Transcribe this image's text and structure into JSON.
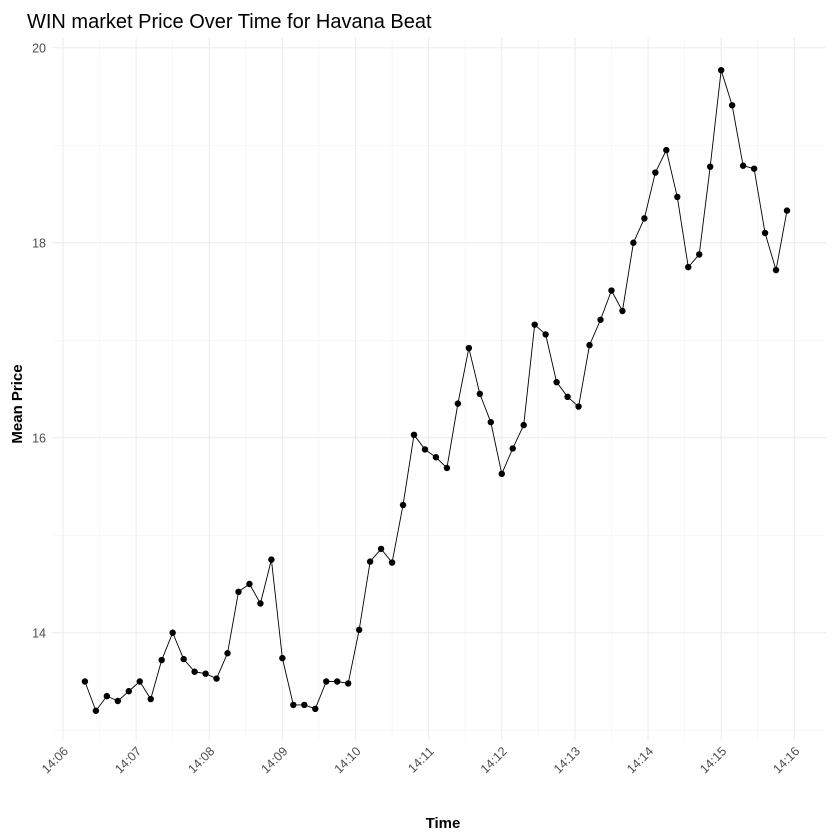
{
  "chart_data": {
    "type": "line",
    "title": "WIN market Price Over Time for Havana Beat",
    "xlabel": "Time",
    "ylabel": "Mean Price",
    "x_ticks": [
      "14:06",
      "14:07",
      "14:08",
      "14:09",
      "14:10",
      "14:11",
      "14:12",
      "14:13",
      "14:14",
      "14:15",
      "14:16"
    ],
    "y_ticks": [
      14,
      16,
      18,
      20
    ],
    "xlim": [
      "14:05:51",
      "14:16:26"
    ],
    "ylim": [
      12.9,
      20.1
    ],
    "grid": true,
    "legend": "none",
    "colors": {
      "line": "#000000",
      "point": "#000000",
      "grid_major": "#ebebeb",
      "grid_minor": "#f4f4f4",
      "background": "#ffffff"
    },
    "series": [
      {
        "x": [
          "14:06:18",
          "14:06:27",
          "14:06:36",
          "14:06:45",
          "14:06:54",
          "14:07:03",
          "14:07:12",
          "14:07:21",
          "14:07:30",
          "14:07:39",
          "14:07:48",
          "14:07:57",
          "14:08:06",
          "14:08:15",
          "14:08:24",
          "14:08:33",
          "14:08:42",
          "14:08:51",
          "14:09:00",
          "14:09:09",
          "14:09:18",
          "14:09:27",
          "14:09:36",
          "14:09:45",
          "14:09:54",
          "14:10:03",
          "14:10:12",
          "14:10:21",
          "14:10:30",
          "14:10:39",
          "14:10:48",
          "14:10:57",
          "14:11:06",
          "14:11:15",
          "14:11:24",
          "14:11:33",
          "14:11:42",
          "14:11:51",
          "14:12:00",
          "14:12:09",
          "14:12:18",
          "14:12:27",
          "14:12:36",
          "14:12:45",
          "14:12:54",
          "14:13:03",
          "14:13:12",
          "14:13:21",
          "14:13:30",
          "14:13:39",
          "14:13:48",
          "14:13:57",
          "14:14:06",
          "14:14:15",
          "14:14:24",
          "14:14:33",
          "14:14:42",
          "14:14:51",
          "14:15:00",
          "14:15:09",
          "14:15:18",
          "14:15:27",
          "14:15:36",
          "14:15:45",
          "14:15:54"
        ],
        "values": [
          13.5,
          13.2,
          13.35,
          13.3,
          13.4,
          13.5,
          13.32,
          13.72,
          14.0,
          13.73,
          13.6,
          13.58,
          13.53,
          13.79,
          14.42,
          14.5,
          14.3,
          14.75,
          13.74,
          13.26,
          13.26,
          13.22,
          13.5,
          13.5,
          13.48,
          14.03,
          14.73,
          14.86,
          14.72,
          15.31,
          16.03,
          15.88,
          15.8,
          15.69,
          16.35,
          16.92,
          16.45,
          16.16,
          15.63,
          15.89,
          16.13,
          17.16,
          17.06,
          16.57,
          16.42,
          16.32,
          16.95,
          17.21,
          17.51,
          17.3,
          18.0,
          18.25,
          18.72,
          18.95,
          18.47,
          17.75,
          17.88,
          18.78,
          19.77,
          19.41,
          18.79,
          18.76,
          18.1,
          17.72,
          18.33
        ]
      }
    ]
  }
}
